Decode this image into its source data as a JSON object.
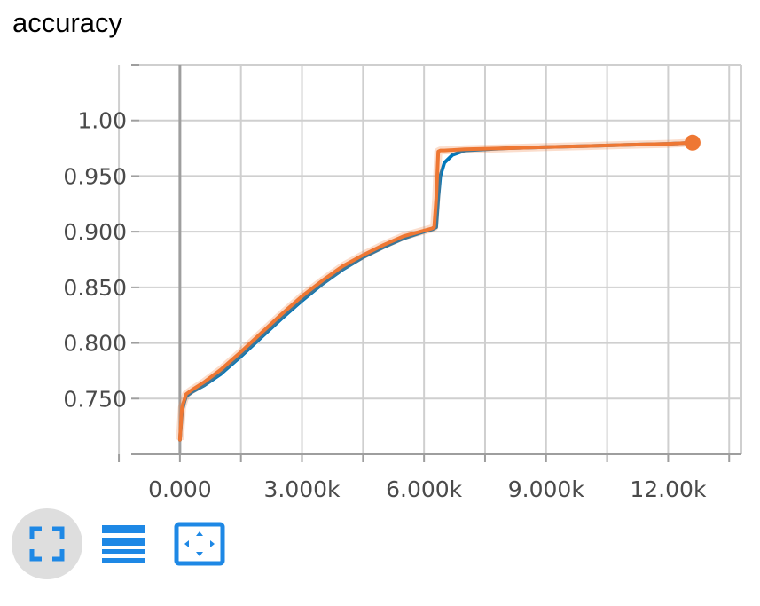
{
  "title": "accuracy",
  "colors": {
    "series_blue": "#0077bb",
    "series_orange": "#ee7733",
    "grid": "#cfcfcf",
    "icon": "#1e88e5"
  },
  "toolbar": {
    "buttons": [
      {
        "icon": "fullscreen-icon",
        "active": true
      },
      {
        "icon": "lines-icon",
        "active": false
      },
      {
        "icon": "fit-domain-icon",
        "active": false
      }
    ]
  },
  "chart_data": {
    "type": "line",
    "title": "accuracy",
    "xlabel": "",
    "ylabel": "",
    "xlim": [
      -1000,
      13800
    ],
    "ylim": [
      0.7,
      1.05
    ],
    "x_ticks": [
      0,
      3000,
      6000,
      9000,
      12000
    ],
    "x_tick_labels": [
      "0.000",
      "3.000k",
      "6.000k",
      "9.000k",
      "12.00k"
    ],
    "y_ticks": [
      0.75,
      0.8,
      0.85,
      0.9,
      0.95,
      1.0
    ],
    "y_tick_labels": [
      "0.750",
      "0.800",
      "0.850",
      "0.900",
      "0.950",
      "1.00"
    ],
    "grid": true,
    "legend": "none",
    "series": [
      {
        "color": "#0077bb",
        "x": [
          0,
          50,
          100,
          150,
          300,
          600,
          1000,
          1500,
          2000,
          2500,
          3000,
          3500,
          4000,
          4500,
          5000,
          5500,
          6000,
          6200,
          6300,
          6350,
          6400,
          6500,
          6700,
          7000,
          8000,
          9000,
          10000,
          11000,
          12000,
          12600
        ],
        "y": [
          0.713,
          0.738,
          0.746,
          0.752,
          0.756,
          0.762,
          0.772,
          0.788,
          0.805,
          0.822,
          0.838,
          0.853,
          0.866,
          0.877,
          0.886,
          0.894,
          0.9,
          0.902,
          0.904,
          0.93,
          0.95,
          0.962,
          0.969,
          0.973,
          0.975,
          0.976,
          0.977,
          0.978,
          0.979,
          0.98
        ]
      },
      {
        "color": "#ee7733",
        "x": [
          0,
          50,
          100,
          150,
          300,
          600,
          1000,
          1500,
          2000,
          2500,
          3000,
          3500,
          4000,
          4500,
          5000,
          5500,
          6000,
          6200,
          6250,
          6300,
          6350,
          6400,
          6500,
          7000,
          8000,
          9000,
          10000,
          11000,
          12000,
          12600
        ],
        "y": [
          0.713,
          0.742,
          0.748,
          0.754,
          0.758,
          0.765,
          0.776,
          0.792,
          0.809,
          0.826,
          0.842,
          0.856,
          0.869,
          0.879,
          0.888,
          0.896,
          0.901,
          0.903,
          0.904,
          0.93,
          0.972,
          0.973,
          0.973,
          0.974,
          0.975,
          0.976,
          0.977,
          0.978,
          0.979,
          0.98
        ]
      }
    ]
  }
}
